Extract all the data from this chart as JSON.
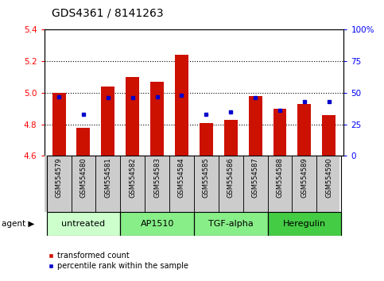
{
  "title": "GDS4361 / 8141263",
  "samples": [
    "GSM554579",
    "GSM554580",
    "GSM554581",
    "GSM554582",
    "GSM554583",
    "GSM554584",
    "GSM554585",
    "GSM554586",
    "GSM554587",
    "GSM554588",
    "GSM554589",
    "GSM554590"
  ],
  "red_values": [
    5.0,
    4.78,
    5.04,
    5.1,
    5.07,
    5.24,
    4.81,
    4.83,
    4.98,
    4.9,
    4.93,
    4.86
  ],
  "blue_values": [
    47,
    33,
    46,
    46,
    47,
    48,
    33,
    35,
    46,
    36,
    43,
    43
  ],
  "ylim_left": [
    4.6,
    5.4
  ],
  "ylim_right": [
    0,
    100
  ],
  "yticks_left": [
    4.6,
    4.8,
    5.0,
    5.2,
    5.4
  ],
  "yticks_right": [
    0,
    25,
    50,
    75,
    100
  ],
  "ytick_labels_right": [
    "0",
    "25",
    "50",
    "75",
    "100%"
  ],
  "groups": [
    {
      "label": "untreated",
      "start": 0,
      "end": 3,
      "color": "#ccffcc"
    },
    {
      "label": "AP1510",
      "start": 3,
      "end": 6,
      "color": "#88ee88"
    },
    {
      "label": "TGF-alpha",
      "start": 6,
      "end": 9,
      "color": "#88ee88"
    },
    {
      "label": "Heregulin",
      "start": 9,
      "end": 12,
      "color": "#44cc44"
    }
  ],
  "bar_color": "#cc1100",
  "dot_color": "#0000cc",
  "bar_bottom": 4.6,
  "bar_width": 0.55,
  "bg_color": "#ffffff",
  "xlabel_gray_bg": "#cccccc",
  "legend_red_label": "transformed count",
  "legend_blue_label": "percentile rank within the sample",
  "agent_label": "agent",
  "title_fontsize": 10,
  "tick_fontsize": 7.5,
  "sample_fontsize": 6,
  "group_label_fontsize": 8
}
